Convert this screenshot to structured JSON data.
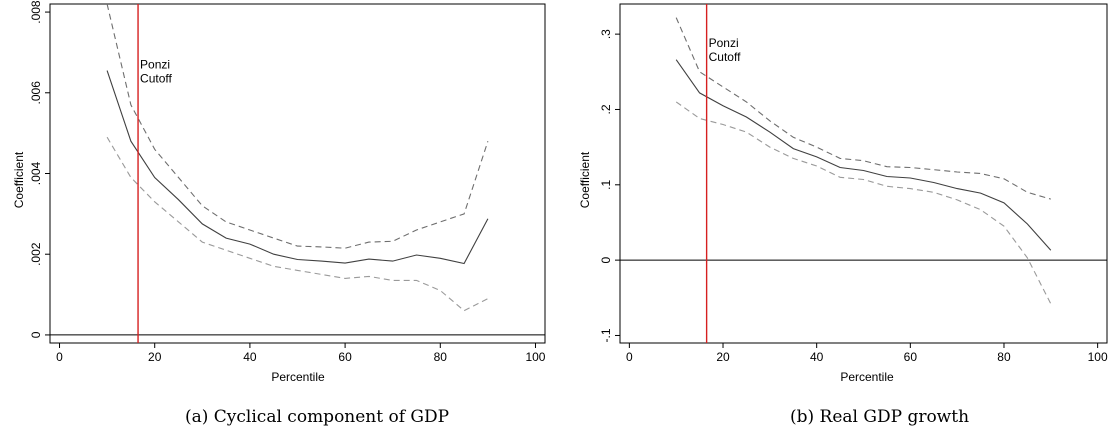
{
  "chart_data": [
    {
      "type": "line",
      "caption": "(a) Cyclical component of GDP",
      "xlabel": "Percentile",
      "ylabel": "Coefficient",
      "xlim": [
        -2,
        102
      ],
      "ylim": [
        -0.0002,
        0.0082
      ],
      "xticks": [
        0,
        20,
        40,
        60,
        80,
        100
      ],
      "xtick_labels": [
        "0",
        "20",
        "40",
        "60",
        "80",
        "100"
      ],
      "yticks": [
        0,
        0.002,
        0.004,
        0.006,
        0.008
      ],
      "ytick_labels": [
        "0",
        ".002",
        ".004",
        ".006",
        ".008"
      ],
      "grid": false,
      "reference_hline": 0,
      "cutoff": {
        "x": 16.5,
        "label_lines": [
          "Ponzi",
          "Cutoff"
        ],
        "label_y": 0.0066,
        "color": "#d62020"
      },
      "x": [
        10,
        15,
        20,
        25,
        30,
        35,
        40,
        45,
        50,
        55,
        60,
        65,
        70,
        75,
        80,
        85,
        90
      ],
      "series": [
        {
          "role": "estimate",
          "style": "solid",
          "color": "#404040",
          "values": [
            0.00655,
            0.0048,
            0.0039,
            0.00335,
            0.00275,
            0.0024,
            0.00225,
            0.002,
            0.00187,
            0.00183,
            0.00178,
            0.00188,
            0.00183,
            0.00198,
            0.0019,
            0.00177,
            0.00288
          ]
        },
        {
          "role": "upper",
          "style": "dashed",
          "color": "#6e6e6e",
          "values": [
            0.0082,
            0.0057,
            0.0046,
            0.0039,
            0.0032,
            0.0028,
            0.0026,
            0.0024,
            0.0022,
            0.00218,
            0.00215,
            0.0023,
            0.00232,
            0.0026,
            0.0028,
            0.003,
            0.0048
          ]
        },
        {
          "role": "lower",
          "style": "dashed",
          "color": "#9a9a9a",
          "values": [
            0.0049,
            0.0039,
            0.0033,
            0.0028,
            0.0023,
            0.0021,
            0.0019,
            0.0017,
            0.0016,
            0.0015,
            0.0014,
            0.00145,
            0.00135,
            0.00135,
            0.0011,
            0.0006,
            0.0009
          ]
        }
      ]
    },
    {
      "type": "line",
      "caption": "(b) Real GDP growth",
      "xlabel": "Percentile",
      "ylabel": "Coefficient",
      "xlim": [
        -2,
        102
      ],
      "ylim": [
        -0.11,
        0.34
      ],
      "xticks": [
        0,
        20,
        40,
        60,
        80,
        100
      ],
      "xtick_labels": [
        "0",
        "20",
        "40",
        "60",
        "80",
        "100"
      ],
      "yticks": [
        -0.1,
        0,
        0.1,
        0.2,
        0.3
      ],
      "ytick_labels": [
        "-.1",
        "0",
        ".1",
        ".2",
        ".3"
      ],
      "grid": false,
      "reference_hline": 0,
      "cutoff": {
        "x": 16.5,
        "label_lines": [
          "Ponzi",
          "Cutoff"
        ],
        "label_y": 0.283,
        "color": "#d62020"
      },
      "x": [
        10,
        15,
        20,
        25,
        30,
        35,
        40,
        45,
        50,
        55,
        60,
        65,
        70,
        75,
        80,
        85,
        90
      ],
      "series": [
        {
          "role": "estimate",
          "style": "solid",
          "color": "#404040",
          "values": [
            0.266,
            0.222,
            0.205,
            0.19,
            0.17,
            0.148,
            0.137,
            0.123,
            0.119,
            0.111,
            0.109,
            0.103,
            0.095,
            0.089,
            0.076,
            0.048,
            0.013
          ]
        },
        {
          "role": "upper",
          "style": "dashed",
          "color": "#6e6e6e",
          "values": [
            0.322,
            0.25,
            0.23,
            0.21,
            0.185,
            0.163,
            0.15,
            0.135,
            0.132,
            0.124,
            0.123,
            0.12,
            0.117,
            0.115,
            0.108,
            0.09,
            0.081
          ]
        },
        {
          "role": "lower",
          "style": "dashed",
          "color": "#9a9a9a",
          "values": [
            0.21,
            0.188,
            0.18,
            0.17,
            0.15,
            0.135,
            0.125,
            0.11,
            0.107,
            0.098,
            0.095,
            0.09,
            0.08,
            0.067,
            0.045,
            0.003,
            -0.058
          ]
        }
      ]
    }
  ]
}
